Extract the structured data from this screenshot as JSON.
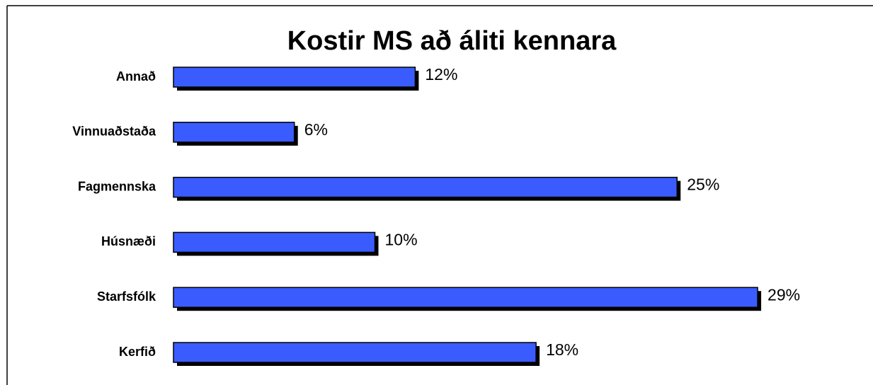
{
  "chart_data": {
    "type": "bar",
    "orientation": "horizontal",
    "title": "Kostir MS að áliti kennara",
    "categories": [
      "Annað",
      "Vinnuaðstaða",
      "Fagmennska",
      "Húsnæði",
      "Starfsfólk",
      "Kerfið"
    ],
    "values": [
      12,
      6,
      25,
      10,
      29,
      18
    ],
    "value_labels": [
      "12%",
      "6%",
      "25%",
      "10%",
      "29%",
      "18%"
    ],
    "color": "#3a5cff"
  }
}
